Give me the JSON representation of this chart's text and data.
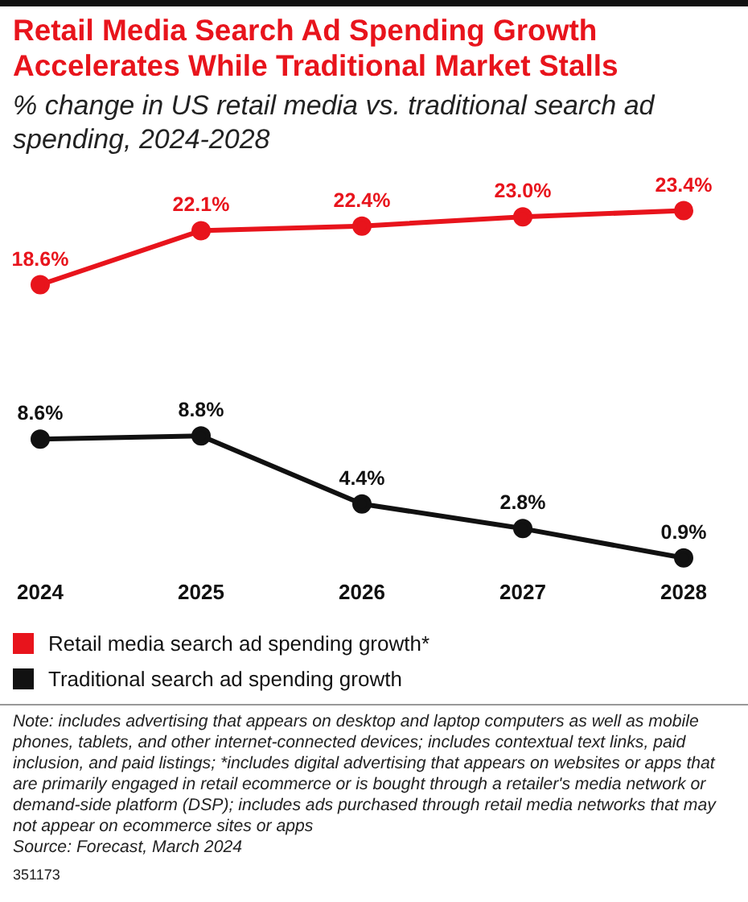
{
  "chart_data": {
    "type": "line",
    "title": "Retail Media Search Ad Spending Growth Accelerates While Traditional Market Stalls",
    "subtitle": "% change in US retail media vs. traditional search ad spending, 2024-2028",
    "categories": [
      "2024",
      "2025",
      "2026",
      "2027",
      "2028"
    ],
    "series": [
      {
        "name": "Retail media search ad spending growth*",
        "color": "#e8141c",
        "values": [
          18.6,
          22.1,
          22.4,
          23.0,
          23.4
        ],
        "value_labels": [
          "18.6%",
          "22.1%",
          "22.4%",
          "23.0%",
          "23.4%"
        ]
      },
      {
        "name": "Traditional search ad spending growth",
        "color": "#111111",
        "values": [
          8.6,
          8.8,
          4.4,
          2.8,
          0.9
        ],
        "value_labels": [
          "8.6%",
          "8.8%",
          "4.4%",
          "2.8%",
          "0.9%"
        ]
      }
    ],
    "marker": "circle",
    "line_style": "solid",
    "grid": false,
    "legend": "bottom",
    "tick_labels": "x",
    "annotations": [
      "Note: includes advertising that appears on desktop and laptop computers as well as mobile phones, tablets, and other internet-connected devices; includes contextual text links, paid inclusion, and paid listings; *includes digital advertising that appears on websites or apps that are primarily engaged in retail ecommerce or is bought through a retailer's media network or demand-side platform (DSP); includes ads purchased through retail media networks that may not appear on ecommerce sites or apps",
      "Source: Forecast, March 2024",
      "351173"
    ]
  }
}
